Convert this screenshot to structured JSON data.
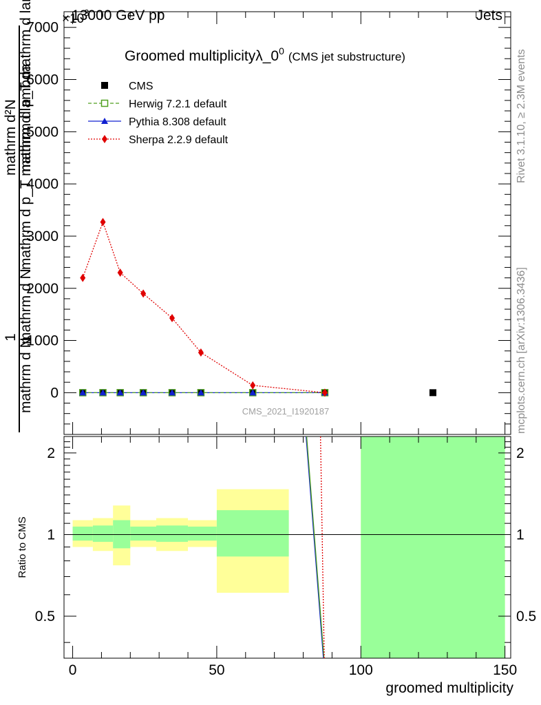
{
  "header": {
    "energy_label": "13000 GeV pp",
    "category_label": "Jets",
    "exponent_label": "×10",
    "exponent_power": "3"
  },
  "side": {
    "rivet_label": "Rivet 3.1.10, ≥ 2.3M events",
    "mcplots_label": "mcplots.cern.ch [arXiv:1306.3436]"
  },
  "chart_data": {
    "type": "line",
    "title": "Groomed multiplicity λ_0^0",
    "title_main": "Groomed multiplicityλ_0",
    "title_sup": "0",
    "title_sub": "(CMS jet substructure)",
    "analysis_label": "CMS_2021_I1920187",
    "xlabel": "groomed multiplicity",
    "ylabel": "1 / (mathrm d N) · mathrm d²N / (mathrm d p_T mathrm d lambda)",
    "ylabel_parts": {
      "numerator_one": "1",
      "denominator_one": "mathrm d N",
      "numerator_two": "mathrm d²N",
      "denominator_two": "mathrm d p_T mathrm d lambda",
      "overlap_one": "mathrm d N",
      "overlap_two": "mathrm d p_T mathrm d lambda"
    },
    "ratio_ylabel": "Ratio to CMS",
    "xlim": [
      -3,
      152
    ],
    "ylim_main": [
      -0.8,
      7.3
    ],
    "ylim_ratio": [
      0.35,
      2.3
    ],
    "x_ticks": [
      0,
      50,
      100,
      150
    ],
    "y_ticks_main": [
      0,
      1,
      2,
      3,
      4,
      5,
      6,
      7
    ],
    "y_tick_labels_main": [
      "0",
      "1000",
      "2000",
      "3000",
      "4000",
      "5000",
      "6000",
      "7000"
    ],
    "y_ticks_ratio": [
      0.5,
      1,
      2
    ],
    "y_tick_labels_ratio": [
      "0.5",
      "1",
      "2"
    ],
    "legend": [
      {
        "name": "CMS",
        "color": "#000000",
        "marker": "square",
        "line": "none"
      },
      {
        "name": "Herwig 7.2.1 default",
        "color": "#4f9f1f",
        "marker": "open-square",
        "line": "dashed"
      },
      {
        "name": "Pythia 8.308 default",
        "color": "#1020d0",
        "marker": "triangle",
        "line": "solid"
      },
      {
        "name": "Sherpa 2.2.9 default",
        "color": "#e00000",
        "marker": "diamond",
        "line": "dotted"
      }
    ],
    "series": [
      {
        "name": "CMS",
        "x": [
          3.5,
          10.5,
          16.5,
          24.5,
          34.5,
          44.5,
          62.5,
          87.5,
          125
        ],
        "values": [
          0,
          0,
          0,
          0,
          0,
          0,
          0,
          0,
          0
        ]
      },
      {
        "name": "Herwig 7.2.1 default",
        "x": [
          3.5,
          10.5,
          16.5,
          24.5,
          34.5,
          44.5,
          62.5,
          87.5
        ],
        "values": [
          0,
          0,
          0,
          0,
          0,
          0,
          0,
          0
        ]
      },
      {
        "name": "Pythia 8.308 default",
        "x": [
          3.5,
          10.5,
          16.5,
          24.5,
          34.5,
          44.5,
          62.5,
          87.5
        ],
        "values": [
          0,
          0,
          0,
          0,
          0,
          0,
          0,
          0
        ]
      },
      {
        "name": "Sherpa 2.2.9 default",
        "x": [
          3.5,
          10.5,
          16.5,
          24.5,
          34.5,
          44.5,
          62.5,
          87.5
        ],
        "values": [
          2.2,
          3.27,
          2.3,
          1.9,
          1.43,
          0.77,
          0.14,
          0.0
        ]
      }
    ],
    "ratio_bands": [
      {
        "x0": 0,
        "x1": 7,
        "outer": [
          0.9,
          1.13
        ],
        "inner": [
          0.95,
          1.07
        ]
      },
      {
        "x0": 7,
        "x1": 14,
        "outer": [
          0.87,
          1.15
        ],
        "inner": [
          0.94,
          1.08
        ]
      },
      {
        "x0": 14,
        "x1": 20,
        "outer": [
          0.77,
          1.28
        ],
        "inner": [
          0.89,
          1.13
        ]
      },
      {
        "x0": 20,
        "x1": 29,
        "outer": [
          0.9,
          1.13
        ],
        "inner": [
          0.95,
          1.07
        ]
      },
      {
        "x0": 29,
        "x1": 40,
        "outer": [
          0.87,
          1.15
        ],
        "inner": [
          0.94,
          1.08
        ]
      },
      {
        "x0": 40,
        "x1": 50,
        "outer": [
          0.9,
          1.13
        ],
        "inner": [
          0.95,
          1.07
        ]
      },
      {
        "x0": 50,
        "x1": 75,
        "outer": [
          0.61,
          1.47
        ],
        "inner": [
          0.83,
          1.23
        ]
      },
      {
        "x0": 100,
        "x1": 150,
        "outer": [
          0.3,
          2.5
        ],
        "inner": [
          0.3,
          2.5
        ]
      }
    ],
    "ratio_lines": [
      {
        "name": "Pythia 8.308 default",
        "x": [
          81,
          87
        ],
        "values": [
          2.5,
          0.3
        ]
      },
      {
        "name": "Herwig 7.2.1 default",
        "x": [
          81.2,
          87.2
        ],
        "values": [
          2.5,
          0.3
        ]
      },
      {
        "name": "Sherpa 2.2.9 default",
        "x": [
          86,
          87.3
        ],
        "values": [
          2.5,
          0.3
        ]
      }
    ],
    "colors": {
      "band_outer": "#ffff99",
      "band_inner": "#99ff99",
      "herwig": "#4f9f1f",
      "pythia": "#1020d0",
      "sherpa": "#e00000",
      "cms": "#000000"
    }
  }
}
